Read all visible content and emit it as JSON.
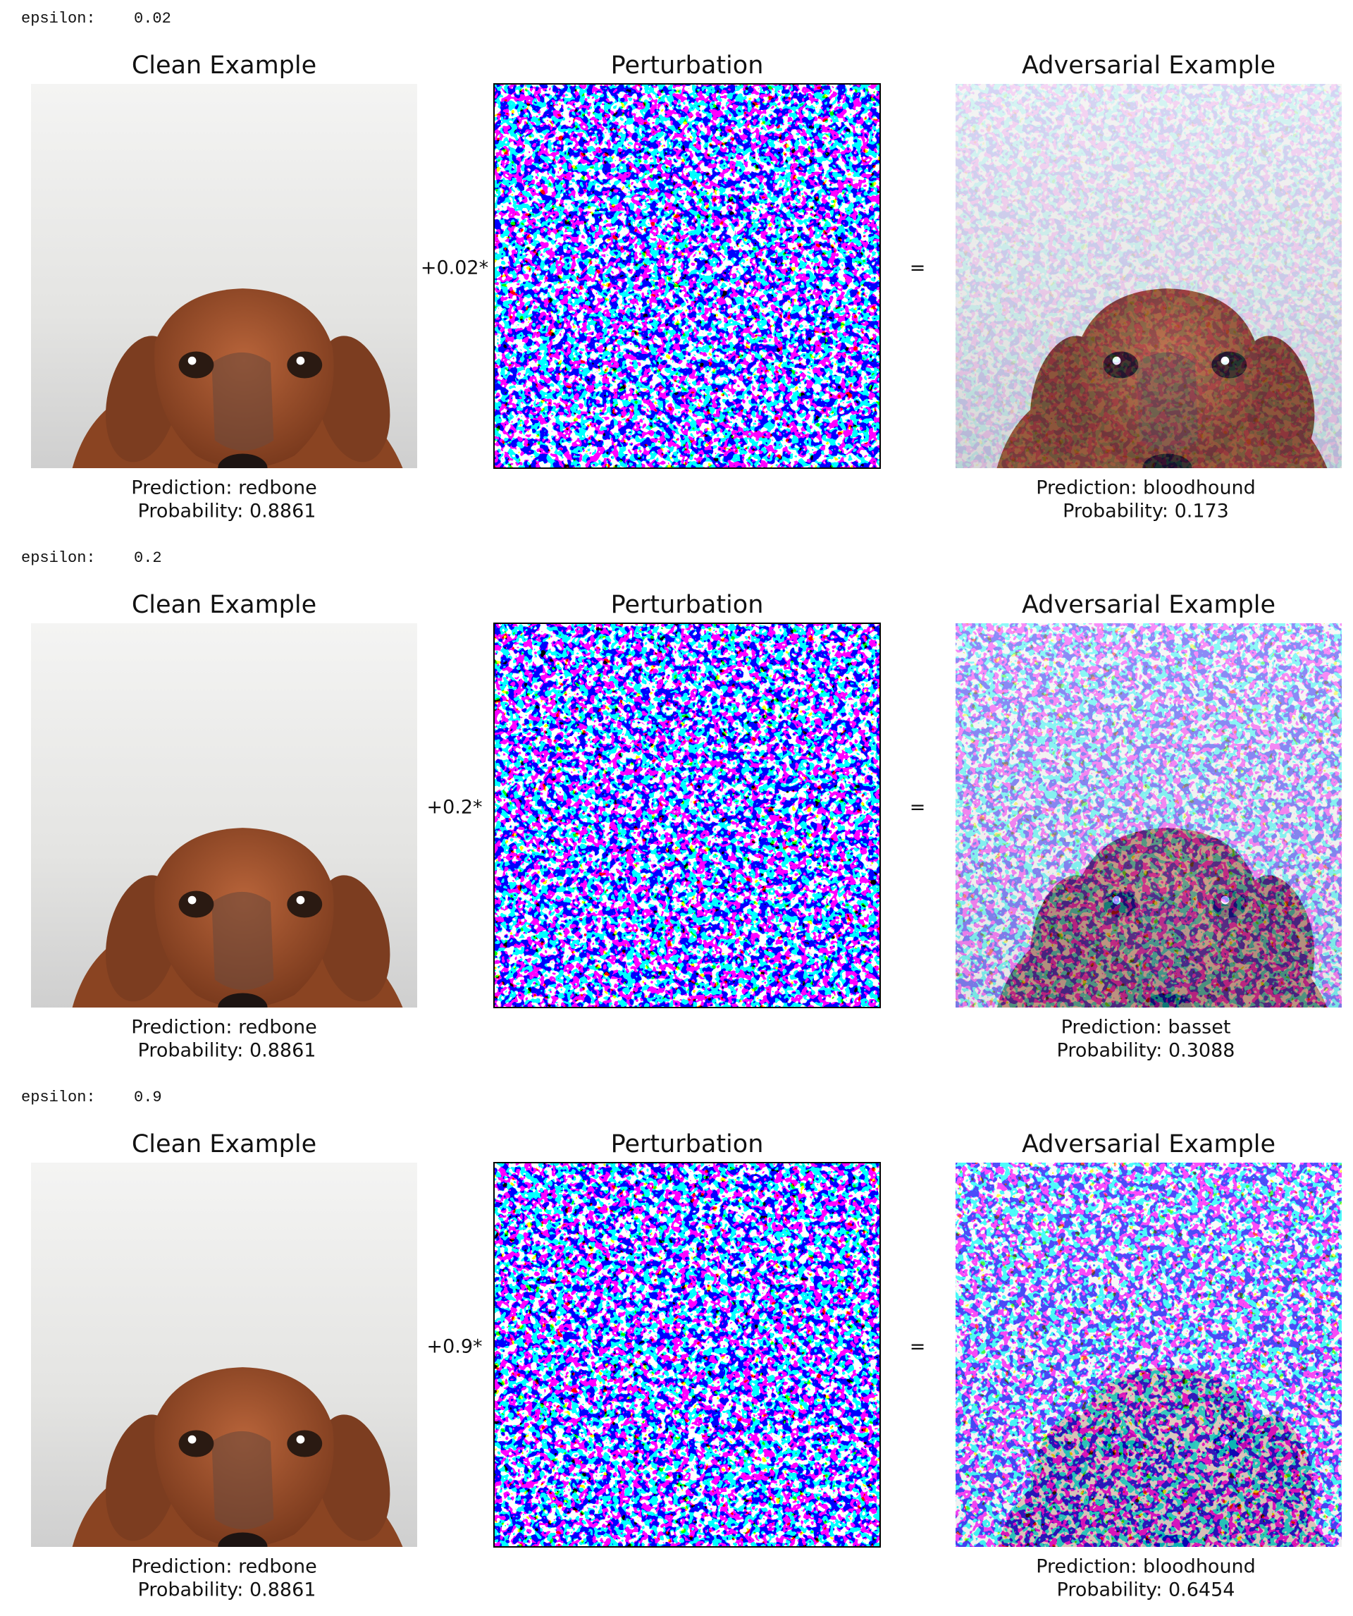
{
  "rows": [
    {
      "epsilon_label": "epsilon:",
      "epsilon": "0.02",
      "clean": {
        "title": "Clean Example",
        "prediction": "Prediction: redbone",
        "probability": "Probability: 0.8861"
      },
      "perturbation": {
        "title": "Perturbation",
        "operator": "+0.02*"
      },
      "equals": "=",
      "adversarial": {
        "title": "Adversarial Example",
        "prediction": "Prediction: bloodhound",
        "probability": "Probability: 0.173"
      }
    },
    {
      "epsilon_label": "epsilon:",
      "epsilon": "0.2",
      "clean": {
        "title": "Clean Example",
        "prediction": "Prediction: redbone",
        "probability": "Probability: 0.8861"
      },
      "perturbation": {
        "title": "Perturbation",
        "operator": "+0.2*"
      },
      "equals": "=",
      "adversarial": {
        "title": "Adversarial Example",
        "prediction": "Prediction: basset",
        "probability": "Probability: 0.3088"
      }
    },
    {
      "epsilon_label": "epsilon:",
      "epsilon": "0.9",
      "clean": {
        "title": "Clean Example",
        "prediction": "Prediction: redbone",
        "probability": "Probability: 0.8861"
      },
      "perturbation": {
        "title": "Perturbation",
        "operator": "+0.9*"
      },
      "equals": "=",
      "adversarial": {
        "title": "Adversarial Example",
        "prediction": "Prediction: bloodhound",
        "probability": "Probability: 0.6454"
      }
    }
  ]
}
